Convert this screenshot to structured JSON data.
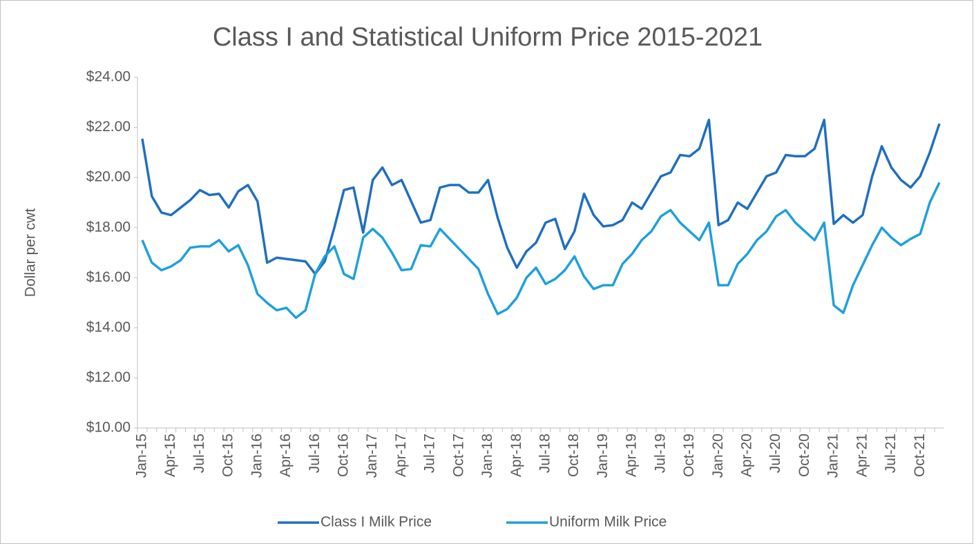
{
  "chart_data": {
    "type": "line",
    "title": "Class I and Statistical Uniform Price 2015-2021",
    "ylabel": "Dollar per cwt",
    "categories": [
      "Jan-15",
      null,
      null,
      "Apr-15",
      null,
      null,
      "Jul-15",
      null,
      null,
      "Oct-15",
      null,
      null,
      "Jan-16",
      null,
      null,
      "Apr-16",
      null,
      null,
      "Jul-16",
      null,
      null,
      "Oct-16",
      null,
      null,
      "Jan-17",
      null,
      null,
      "Apr-17",
      null,
      null,
      "Jul-17",
      null,
      null,
      "Oct-17",
      null,
      null,
      "Jan-18",
      null,
      null,
      "Apr-18",
      null,
      null,
      "Jul-18",
      null,
      null,
      "Oct-18",
      null,
      null,
      "Jan-19",
      null,
      null,
      "Apr-19",
      null,
      null,
      "Jul-19",
      null,
      null,
      "Oct-19",
      null,
      null,
      "Jan-20",
      null,
      null,
      "Apr-20",
      null,
      null,
      "Jul-20",
      null,
      null,
      "Oct-20",
      null,
      null,
      "Jan-21",
      null,
      null,
      "Apr-21",
      null,
      null,
      "Jul-21",
      null,
      null,
      "Oct-21",
      null,
      null
    ],
    "series": [
      {
        "name": "Class I Milk Price",
        "color": "#1f6fc0",
        "values": [
          21.55,
          19.25,
          18.6,
          18.5,
          18.8,
          19.1,
          19.5,
          19.3,
          19.35,
          18.8,
          19.45,
          19.7,
          19.05,
          16.6,
          16.8,
          16.75,
          16.7,
          16.65,
          16.15,
          16.65,
          18.0,
          19.5,
          19.6,
          17.8,
          19.9,
          20.4,
          19.7,
          19.9,
          19.05,
          18.2,
          18.3,
          19.6,
          19.7,
          19.7,
          19.4,
          19.4,
          19.9,
          18.4,
          17.2,
          16.4,
          17.05,
          17.4,
          18.2,
          18.35,
          17.15,
          17.85,
          19.35,
          18.5,
          18.05,
          18.1,
          18.3,
          19.0,
          18.75,
          19.4,
          20.05,
          20.2,
          20.9,
          20.85,
          21.15,
          22.3,
          18.1,
          18.3,
          19.0,
          18.75,
          19.4,
          20.05,
          20.2,
          20.9,
          20.85,
          20.85,
          21.15,
          22.3,
          18.15,
          18.5,
          18.2,
          18.5,
          20.05,
          21.25,
          20.4,
          19.9,
          19.6,
          20.05,
          21.0,
          22.15
        ]
      },
      {
        "name": "Uniform Milk Price",
        "color": "#1ea0dc",
        "values": [
          17.5,
          16.6,
          16.3,
          16.45,
          16.7,
          17.2,
          17.25,
          17.25,
          17.5,
          17.05,
          17.3,
          16.5,
          15.35,
          15.0,
          14.7,
          14.8,
          14.4,
          14.7,
          16.15,
          16.85,
          17.25,
          16.15,
          15.95,
          17.6,
          17.95,
          17.6,
          17.0,
          16.3,
          16.35,
          17.3,
          17.25,
          17.95,
          17.55,
          17.15,
          16.75,
          16.35,
          15.35,
          14.55,
          14.75,
          15.2,
          16.0,
          16.4,
          15.75,
          15.95,
          16.3,
          16.85,
          16.05,
          15.55,
          15.7,
          15.7,
          16.55,
          16.95,
          17.5,
          17.85,
          18.45,
          18.7,
          18.2,
          17.85,
          17.5,
          18.2,
          15.7,
          15.7,
          16.55,
          16.95,
          17.5,
          17.85,
          18.45,
          18.7,
          18.2,
          17.85,
          17.5,
          18.2,
          14.9,
          14.6,
          15.7,
          16.5,
          17.3,
          18.0,
          17.6,
          17.3,
          17.55,
          17.75,
          19.0,
          19.8
        ]
      }
    ],
    "ylim": [
      10,
      24
    ],
    "yticks": [
      {
        "value": 10,
        "label": "$10.00"
      },
      {
        "value": 12,
        "label": "$12.00"
      },
      {
        "value": 14,
        "label": "$14.00"
      },
      {
        "value": 16,
        "label": "$16.00"
      },
      {
        "value": 18,
        "label": "$18.00"
      },
      {
        "value": 20,
        "label": "$20.00"
      },
      {
        "value": 22,
        "label": "$22.00"
      },
      {
        "value": 24,
        "label": "$24.00"
      }
    ],
    "grid": false,
    "legend": "bottom"
  }
}
